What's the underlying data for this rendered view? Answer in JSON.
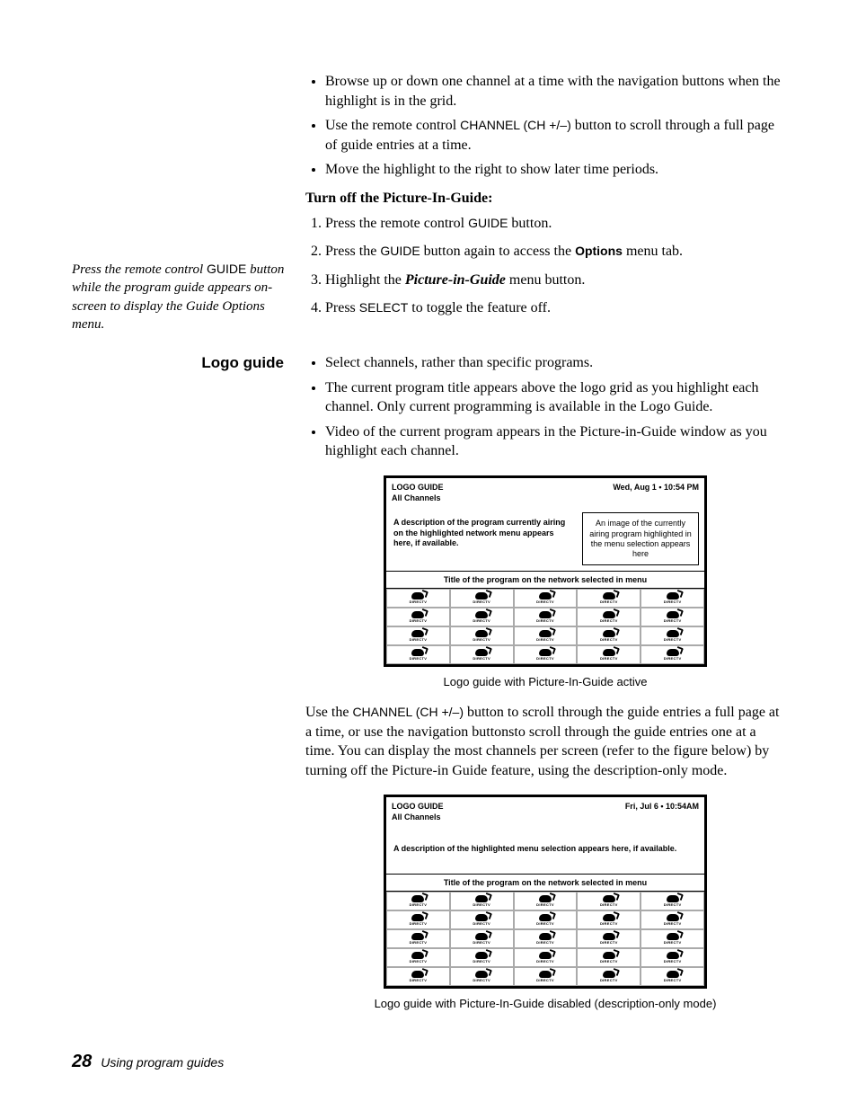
{
  "top_bullets": [
    {
      "pre": "Browse up or down one channel at a time with the navigation buttons when the highlight is in the grid."
    },
    {
      "pre": "Use the remote control ",
      "sans": "CHANNEL (CH +/–)",
      "post": " button to scroll through a full page of guide entries at a time."
    },
    {
      "pre": "Move the highlight to the right to show later time periods."
    }
  ],
  "subhead": "Turn off the Picture-In-Guide:",
  "steps": [
    {
      "pre": "Press the remote control ",
      "sans": "GUIDE",
      "post": " button."
    },
    {
      "pre": "Press the ",
      "sans": "GUIDE",
      "post": " button again to access the ",
      "boldsans": "Options",
      "tail": " menu tab."
    },
    {
      "pre": "Highlight the ",
      "bolditalic": "Picture-in-Guide",
      "post": " menu button."
    },
    {
      "pre": "Press ",
      "sans": "SELECT",
      "post": " to toggle the feature off."
    }
  ],
  "sidebar": {
    "pre": "Press the remote control ",
    "btn": "GUIDE",
    "post": " button while the program guide appears on-screen to display the Guide Options menu."
  },
  "section_title": "Logo guide",
  "logo_bullets": [
    "Select channels, rather than specific programs.",
    "The current program title appears above the logo grid as you highlight each channel. Only current programming is available in the Logo Guide.",
    "Video of the current program appears in the Picture-in-Guide window as you highlight each channel."
  ],
  "fig1": {
    "title": "LOGO GUIDE",
    "subtitle": "All Channels",
    "datetime": "Wed, Aug 1  • 10:54 PM",
    "desc": "A description of the program currently airing on the highlighted network menu appears here, if available.",
    "pip": "An image of the currently airing program highlighted in the menu selection appears here",
    "bar": "Title of the program on the network selected in menu",
    "logo_label": "DIRECTV",
    "rows": 4,
    "cols": 5,
    "caption": "Logo guide with Picture-In-Guide active"
  },
  "mid_para": {
    "pre": "Use the ",
    "sans": "CHANNEL (CH +/–)",
    "post": " button to scroll through the guide entries a full page at a time, or use the navigation buttonsto scroll through the guide entries one at a time. You can display the most channels per screen (refer to the figure below) by turning off the Picture-in Guide feature, using the description-only mode."
  },
  "fig2": {
    "title": "LOGO GUIDE",
    "subtitle": "All Channels",
    "datetime": "Fri, Jul 6  • 10:54AM",
    "desc": "A description of the highlighted menu selection appears here, if available.",
    "bar": "Title of the program on the network selected in menu",
    "logo_label": "DIRECTV",
    "rows": 5,
    "cols": 5,
    "caption": "Logo guide with Picture-In-Guide disabled (description-only mode)"
  },
  "footer": {
    "num": "28",
    "text": "Using program guides"
  }
}
